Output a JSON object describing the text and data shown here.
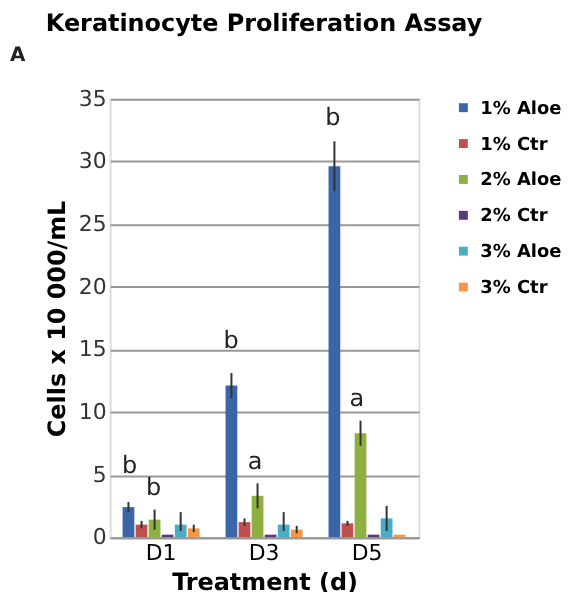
{
  "chart_data": {
    "type": "bar",
    "title": "Keratinocyte Proliferation Assay",
    "xlabel": "Treatment (d)",
    "ylabel": "Cells x 10 000/mL",
    "categories": [
      "D1",
      "D3",
      "D5"
    ],
    "series": [
      {
        "name": "1% Aloe",
        "color": "#3a66a8",
        "values": [
          2.4,
          12.1,
          29.6
        ],
        "errors": [
          0.4,
          1.0,
          2.0
        ]
      },
      {
        "name": "1% Ctr",
        "color": "#c0504d",
        "values": [
          1.0,
          1.2,
          1.1
        ],
        "errors": [
          0.3,
          0.3,
          0.2
        ]
      },
      {
        "name": "2% Aloe",
        "color": "#8db040",
        "values": [
          1.4,
          3.3,
          8.3
        ],
        "errors": [
          0.8,
          1.0,
          1.0
        ]
      },
      {
        "name": "2% Ctr",
        "color": "#5a3a7a",
        "values": [
          0.2,
          0.2,
          0.2
        ]
      },
      {
        "name": "3% Aloe",
        "color": "#4aacc6",
        "values": [
          1.0,
          1.0,
          1.5
        ],
        "errors": [
          [
            0.5,
            2.0
          ],
          [
            0.5,
            2.0
          ],
          1.0
        ]
      },
      {
        "name": "3% Ctr",
        "color": "#f79646",
        "values": [
          0.7,
          0.6,
          0.2
        ],
        "errors": [
          0.3,
          0.3,
          null
        ]
      }
    ],
    "ylim": [
      0,
      35
    ],
    "yticks": [
      0,
      5,
      10,
      15,
      20,
      25,
      30,
      35
    ],
    "grid": "y",
    "legend": "right",
    "annotations": [
      "A",
      "b",
      "b",
      "b",
      "a",
      "b",
      "a"
    ]
  }
}
